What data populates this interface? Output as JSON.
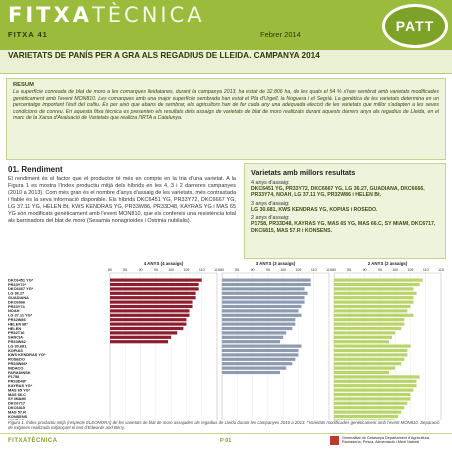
{
  "header": {
    "brand_a": "FITXA",
    "brand_b": "TÈCNICA",
    "issue": "FITXA 41",
    "date": "Febrer 2014",
    "logo_text": "PATT",
    "title": "VARIETATS DE PANÍS PER A GRA ALS REGADIUS DE LLEIDA. CAMPANYA 2014"
  },
  "resum": {
    "heading": "RESUM",
    "text": "La superfície conreada de blat de moro a les comarques lleidatanes, durant la campanya 2013, ha estat de 32.806 ha, de les quals el 54 % s'han sembrat amb varietats modificades genèticament amb l'event MON810. Les comarques amb una major superfície sembrada han estat el Pla d'Urgell, la Noguera i el Segrià. La genètica de les varietats determina en un percentatge important l'èxit del cultiu. És per això que abans de sembrar, els agricultors han de fer cada any una adequada elecció de les varietats que millor s'adapten a les seves condicions de conreu. En aquesta fitxa tècnica es presenten els resultats dels assaigs de varietats de blat de moro realitzats durant aquests darrers anys als regadius de Lleida, en el marc de la Xarxa d'Avaluació de Varietats que realitza l'IRTA a Catalunya."
  },
  "section1": {
    "heading": "01. Rendiment",
    "text": "El rendiment és el factor que el productor té més en compte en la tria d'una varietat. A la Figura 1 es mostra l'índex productiu mitjà dels híbrids en les 4, 3 i 2 darreres campanyes (2010 a 2013). Com més gran és el nombre d'anys d'assaig de les varietats, més contrastada i fiable és la seva informació disponible. Els híbrids DKC6451 YG, PR33Y72, DKC6667 YG, LG 37.11 YG, HELEN Bt, KWS KENDRAS YG, PR33W86, PR33D48, KAYRAS YG i MAS 65 YG són modificats genèticament amb l'event MON810, que els confereix una resistència total als barrinadors del blat de moro (Sesamia nonagrioides i Ostrinia nubilalis)."
  },
  "best": {
    "heading": "Varietats amb millors resultats",
    "y4_label": "4 anys d'assaig:",
    "y4_list": "DKC6451 YG, PR33Y72, DKC6667 YG, LG 36.27, GUADIANA, DKC6666, PR33Y74, NOAH, LG 37.11 YG, PR32W86 i HELEN Bt.",
    "y3_label": "3 anys d'assaig:",
    "y3_list": "LG 30.681, KWS KENDRAS YG, KOPIAS i ROSEDO.",
    "y2_label": "2 anys d'assaig:",
    "y2_list": "P1758, PR33D48, KAYRAS YG, MAS 65 YG, MAS 66.C, SY MIAMI, DKC6717, DKC6815, MAS 57.R i KONSENS."
  },
  "caption": "Figura 1. Índex productiu mitjà (respecte ELEONORA) de les varietats de blat de moro assajades als regadius de Lleida durant les campanyes 2010 a 2013. *Varietats modificades genèticament amb l'event MON810. Separació de mitjanes realitzada mitjançant el test d'Edwards and Berry.",
  "footer": {
    "brand": "FITXATÈCNICA",
    "page": "P 01",
    "gov": "Generalitat de Catalunya Departament d'Agricultura, Ramaderia, Pesca, Alimentació i Medi Natural"
  },
  "chart_data": {
    "type": "bar",
    "orientation": "horizontal",
    "panels": [
      {
        "title": "4 ANYS (4 assaigs)",
        "color": "#8e1e2d"
      },
      {
        "title": "3 ANYS (3 assaigs)",
        "color": "#8d9ab0"
      },
      {
        "title": "2 ANYS (2 assaigs)",
        "color": "#b8d46a"
      }
    ],
    "ticks": [
      "80",
      "85",
      "90",
      "95",
      "100",
      "105",
      "110",
      "115"
    ],
    "xlim": [
      80,
      115
    ],
    "categories": [
      "DKC6451 YG*",
      "PR33Y72*",
      "DKC6667 YG*",
      "LG 36.27",
      "GUADIANA",
      "DKC6666",
      "PR33Y74",
      "NOAH",
      "LG 37.11 YG*",
      "PR32W86",
      "HELEN Bt*",
      "HELEN",
      "PR32T16",
      "SANCIA",
      "PR33W82",
      "LG 30.681",
      "KOPIAS",
      "KWS KENDRAS YG*",
      "ROSEDO",
      "PR33W86*",
      "INDACO",
      "FARADINSK",
      "P1758",
      "PR33D48*",
      "KAYRAS YG*",
      "MAS 65 YG*",
      "MAS 66.C",
      "SY MIAMI",
      "DKC6717",
      "DKC6815",
      "MAS 57.R",
      "KONSENS",
      "KAYRAS"
    ],
    "series": [
      {
        "name": "4 ANYS (4 assaigs)",
        "values": [
          110,
          109,
          109,
          108,
          108,
          107,
          107,
          106,
          106,
          105,
          105,
          104,
          102,
          100,
          99,
          null,
          null,
          null,
          null,
          null,
          null,
          null,
          null,
          null,
          null,
          null,
          null,
          null,
          null,
          null,
          null,
          null,
          null
        ]
      },
      {
        "name": "3 ANYS (3 assaigs)",
        "values": [
          109,
          109,
          107,
          108,
          107,
          107,
          106,
          105,
          106,
          104,
          104,
          103,
          101,
          100,
          99,
          106,
          105,
          105,
          104,
          103,
          101,
          99,
          null,
          null,
          null,
          null,
          null,
          null,
          null,
          null,
          null,
          null,
          null
        ]
      },
      {
        "name": "2 ANYS (2 assaigs)",
        "values": [
          109,
          108,
          106,
          107,
          106,
          106,
          105,
          104,
          106,
          103,
          103,
          102,
          100,
          99,
          98,
          105,
          104,
          104,
          103,
          102,
          100,
          98,
          108,
          107,
          107,
          106,
          105,
          105,
          104,
          103,
          102,
          101,
          100
        ]
      }
    ]
  }
}
